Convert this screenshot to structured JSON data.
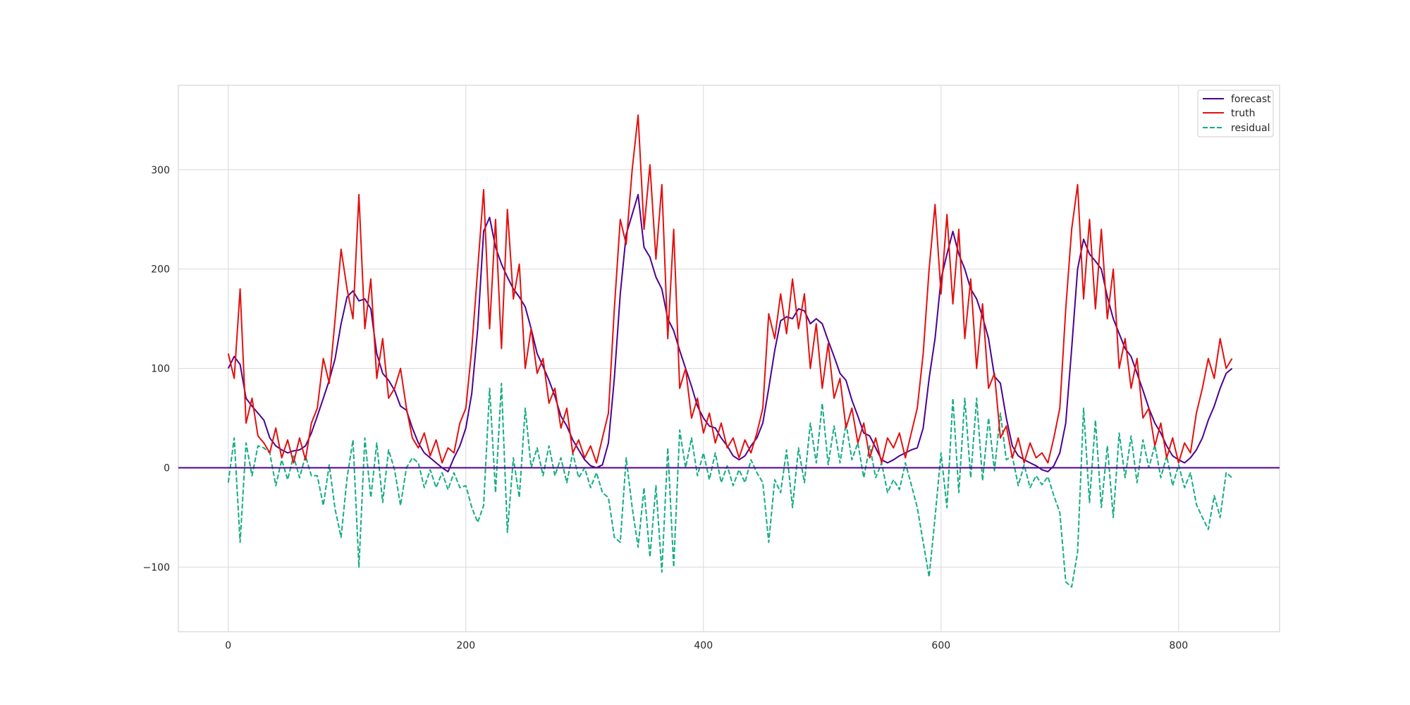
{
  "chart_data": {
    "type": "line",
    "title": "",
    "xlabel": "",
    "ylabel": "",
    "xlim": [
      -42,
      885
    ],
    "ylim": [
      -165,
      385
    ],
    "xticks": [
      0,
      200,
      400,
      600,
      800
    ],
    "yticks": [
      -100,
      0,
      100,
      200,
      300
    ],
    "grid": true,
    "legend_position": "top-right",
    "n_points": 846,
    "baseline": {
      "y": 0,
      "color": "#4b0091"
    },
    "series": [
      {
        "name": "forecast",
        "color": "#4b0091",
        "style": "solid",
        "x": [
          0,
          5,
          10,
          15,
          20,
          25,
          30,
          35,
          40,
          45,
          50,
          55,
          60,
          65,
          70,
          75,
          80,
          85,
          90,
          95,
          100,
          105,
          110,
          115,
          120,
          125,
          130,
          135,
          140,
          145,
          150,
          155,
          160,
          165,
          170,
          175,
          180,
          185,
          190,
          195,
          200,
          205,
          210,
          215,
          220,
          225,
          230,
          235,
          240,
          245,
          250,
          255,
          260,
          265,
          270,
          275,
          280,
          285,
          290,
          295,
          300,
          305,
          310,
          315,
          320,
          325,
          330,
          335,
          340,
          345,
          350,
          355,
          360,
          365,
          370,
          375,
          380,
          385,
          390,
          395,
          400,
          405,
          410,
          415,
          420,
          425,
          430,
          435,
          440,
          445,
          450,
          455,
          460,
          465,
          470,
          475,
          480,
          485,
          490,
          495,
          500,
          505,
          510,
          515,
          520,
          525,
          530,
          535,
          540,
          545,
          550,
          555,
          560,
          565,
          570,
          575,
          580,
          585,
          590,
          595,
          600,
          605,
          610,
          615,
          620,
          625,
          630,
          635,
          640,
          645,
          650,
          655,
          660,
          665,
          670,
          675,
          680,
          685,
          690,
          695,
          700,
          705,
          710,
          715,
          720,
          725,
          730,
          735,
          740,
          745,
          750,
          755,
          760,
          765,
          770,
          775,
          780,
          785,
          790,
          795,
          800,
          805,
          810,
          815,
          820,
          825,
          830,
          835,
          840,
          845
        ],
        "values": [
          100,
          112,
          104,
          70,
          62,
          55,
          48,
          30,
          22,
          18,
          15,
          17,
          18,
          22,
          35,
          52,
          70,
          88,
          110,
          145,
          172,
          178,
          168,
          170,
          160,
          115,
          95,
          88,
          78,
          62,
          58,
          40,
          25,
          15,
          10,
          5,
          0,
          -4,
          10,
          22,
          40,
          75,
          140,
          238,
          252,
          222,
          205,
          192,
          180,
          172,
          162,
          140,
          115,
          102,
          88,
          72,
          52,
          42,
          28,
          18,
          8,
          2,
          0,
          3,
          25,
          90,
          175,
          235,
          255,
          275,
          222,
          212,
          192,
          180,
          150,
          138,
          118,
          100,
          82,
          62,
          50,
          42,
          40,
          30,
          22,
          12,
          8,
          12,
          22,
          30,
          45,
          80,
          118,
          148,
          152,
          150,
          160,
          158,
          145,
          150,
          145,
          128,
          112,
          95,
          88,
          68,
          52,
          35,
          32,
          20,
          8,
          5,
          8,
          12,
          15,
          18,
          20,
          40,
          90,
          130,
          190,
          215,
          238,
          215,
          200,
          180,
          170,
          152,
          130,
          92,
          85,
          50,
          22,
          12,
          8,
          5,
          2,
          -2,
          -4,
          2,
          15,
          45,
          120,
          200,
          230,
          215,
          208,
          200,
          172,
          150,
          135,
          120,
          112,
          95,
          78,
          60,
          45,
          35,
          22,
          12,
          8,
          5,
          10,
          18,
          30,
          48,
          62,
          80,
          95,
          100
        ]
      },
      {
        "name": "truth",
        "color": "#e3100f",
        "style": "solid",
        "x": [
          0,
          5,
          10,
          15,
          20,
          25,
          30,
          35,
          40,
          45,
          50,
          55,
          60,
          65,
          70,
          75,
          80,
          85,
          90,
          95,
          100,
          105,
          110,
          115,
          120,
          125,
          130,
          135,
          140,
          145,
          150,
          155,
          160,
          165,
          170,
          175,
          180,
          185,
          190,
          195,
          200,
          205,
          210,
          215,
          220,
          225,
          230,
          235,
          240,
          245,
          250,
          255,
          260,
          265,
          270,
          275,
          280,
          285,
          290,
          295,
          300,
          305,
          310,
          315,
          320,
          325,
          330,
          335,
          340,
          345,
          350,
          355,
          360,
          365,
          370,
          375,
          380,
          385,
          390,
          395,
          400,
          405,
          410,
          415,
          420,
          425,
          430,
          435,
          440,
          445,
          450,
          455,
          460,
          465,
          470,
          475,
          480,
          485,
          490,
          495,
          500,
          505,
          510,
          515,
          520,
          525,
          530,
          535,
          540,
          545,
          550,
          555,
          560,
          565,
          570,
          575,
          580,
          585,
          590,
          595,
          600,
          605,
          610,
          615,
          620,
          625,
          630,
          635,
          640,
          645,
          650,
          655,
          660,
          665,
          670,
          675,
          680,
          685,
          690,
          695,
          700,
          705,
          710,
          715,
          720,
          725,
          730,
          735,
          740,
          745,
          750,
          755,
          760,
          765,
          770,
          775,
          780,
          785,
          790,
          795,
          800,
          805,
          810,
          815,
          820,
          825,
          830,
          835,
          840,
          845
        ],
        "values": [
          115,
          90,
          180,
          45,
          70,
          32,
          25,
          15,
          40,
          10,
          28,
          5,
          30,
          8,
          45,
          60,
          110,
          85,
          150,
          220,
          180,
          150,
          275,
          140,
          190,
          90,
          130,
          70,
          80,
          100,
          60,
          30,
          20,
          35,
          12,
          28,
          5,
          20,
          15,
          45,
          60,
          120,
          200,
          280,
          140,
          250,
          120,
          260,
          170,
          205,
          100,
          140,
          95,
          110,
          65,
          80,
          40,
          60,
          15,
          28,
          10,
          22,
          5,
          30,
          55,
          160,
          250,
          225,
          300,
          355,
          240,
          305,
          210,
          285,
          130,
          240,
          80,
          100,
          50,
          70,
          35,
          55,
          25,
          45,
          20,
          30,
          10,
          28,
          15,
          35,
          60,
          155,
          130,
          175,
          135,
          190,
          140,
          175,
          100,
          145,
          80,
          125,
          70,
          90,
          40,
          60,
          25,
          45,
          10,
          30,
          5,
          30,
          20,
          35,
          10,
          35,
          60,
          115,
          200,
          265,
          175,
          255,
          165,
          240,
          130,
          190,
          100,
          165,
          80,
          95,
          30,
          42,
          10,
          30,
          5,
          25,
          10,
          15,
          5,
          30,
          60,
          160,
          240,
          285,
          170,
          250,
          160,
          240,
          150,
          200,
          100,
          130,
          80,
          110,
          50,
          60,
          22,
          45,
          10,
          30,
          5,
          25,
          15,
          55,
          80,
          110,
          90,
          130,
          100,
          110
        ]
      },
      {
        "name": "residual",
        "color": "#14ad82",
        "style": "dashed",
        "x": [
          0,
          5,
          10,
          15,
          20,
          25,
          30,
          35,
          40,
          45,
          50,
          55,
          60,
          65,
          70,
          75,
          80,
          85,
          90,
          95,
          100,
          105,
          110,
          115,
          120,
          125,
          130,
          135,
          140,
          145,
          150,
          155,
          160,
          165,
          170,
          175,
          180,
          185,
          190,
          195,
          200,
          205,
          210,
          215,
          220,
          225,
          230,
          235,
          240,
          245,
          250,
          255,
          260,
          265,
          270,
          275,
          280,
          285,
          290,
          295,
          300,
          305,
          310,
          315,
          320,
          325,
          330,
          335,
          340,
          345,
          350,
          355,
          360,
          365,
          370,
          375,
          380,
          385,
          390,
          395,
          400,
          405,
          410,
          415,
          420,
          425,
          430,
          435,
          440,
          445,
          450,
          455,
          460,
          465,
          470,
          475,
          480,
          485,
          490,
          495,
          500,
          505,
          510,
          515,
          520,
          525,
          530,
          535,
          540,
          545,
          550,
          555,
          560,
          565,
          570,
          575,
          580,
          585,
          590,
          595,
          600,
          605,
          610,
          615,
          620,
          625,
          630,
          635,
          640,
          645,
          650,
          655,
          660,
          665,
          670,
          675,
          680,
          685,
          690,
          695,
          700,
          705,
          710,
          715,
          720,
          725,
          730,
          735,
          740,
          745,
          750,
          755,
          760,
          765,
          770,
          775,
          780,
          785,
          790,
          795,
          800,
          805,
          810,
          815,
          820,
          825,
          830,
          835,
          840,
          845
        ],
        "values": [
          -15,
          30,
          -75,
          25,
          -8,
          22,
          20,
          15,
          -18,
          8,
          -12,
          12,
          -10,
          12,
          -8,
          -8,
          -38,
          3,
          -42,
          -70,
          -10,
          28,
          -100,
          30,
          -30,
          25,
          -35,
          18,
          -2,
          -38,
          0,
          10,
          5,
          -20,
          -2,
          -20,
          -5,
          -22,
          -5,
          -20,
          -18,
          -40,
          -55,
          -38,
          80,
          -25,
          85,
          -65,
          10,
          -30,
          60,
          0,
          20,
          -8,
          22,
          -8,
          10,
          -15,
          15,
          -10,
          0,
          -20,
          -5,
          -25,
          -30,
          -70,
          -75,
          10,
          -40,
          -80,
          -20,
          -90,
          -18,
          -105,
          20,
          -100,
          38,
          0,
          30,
          -8,
          15,
          -12,
          15,
          -15,
          2,
          -18,
          -2,
          -15,
          8,
          -5,
          -15,
          -75,
          -12,
          -25,
          18,
          -40,
          20,
          -15,
          45,
          5,
          65,
          3,
          42,
          5,
          45,
          8,
          25,
          -10,
          22,
          -10,
          5,
          -25,
          -12,
          -22,
          5,
          -17,
          -40,
          -75,
          -110,
          -50,
          15,
          -40,
          70,
          -25,
          70,
          -10,
          70,
          -13,
          50,
          -3,
          55,
          8,
          12,
          -18,
          3,
          -20,
          -8,
          -17,
          -9,
          -28,
          -45,
          -115,
          -120,
          -85,
          60,
          -35,
          48,
          -40,
          22,
          -50,
          35,
          -10,
          32,
          -15,
          28,
          0,
          23,
          -10,
          12,
          -18,
          3,
          -20,
          -5,
          -37,
          -50,
          -62,
          -28,
          -50,
          -5,
          -10
        ]
      }
    ]
  }
}
